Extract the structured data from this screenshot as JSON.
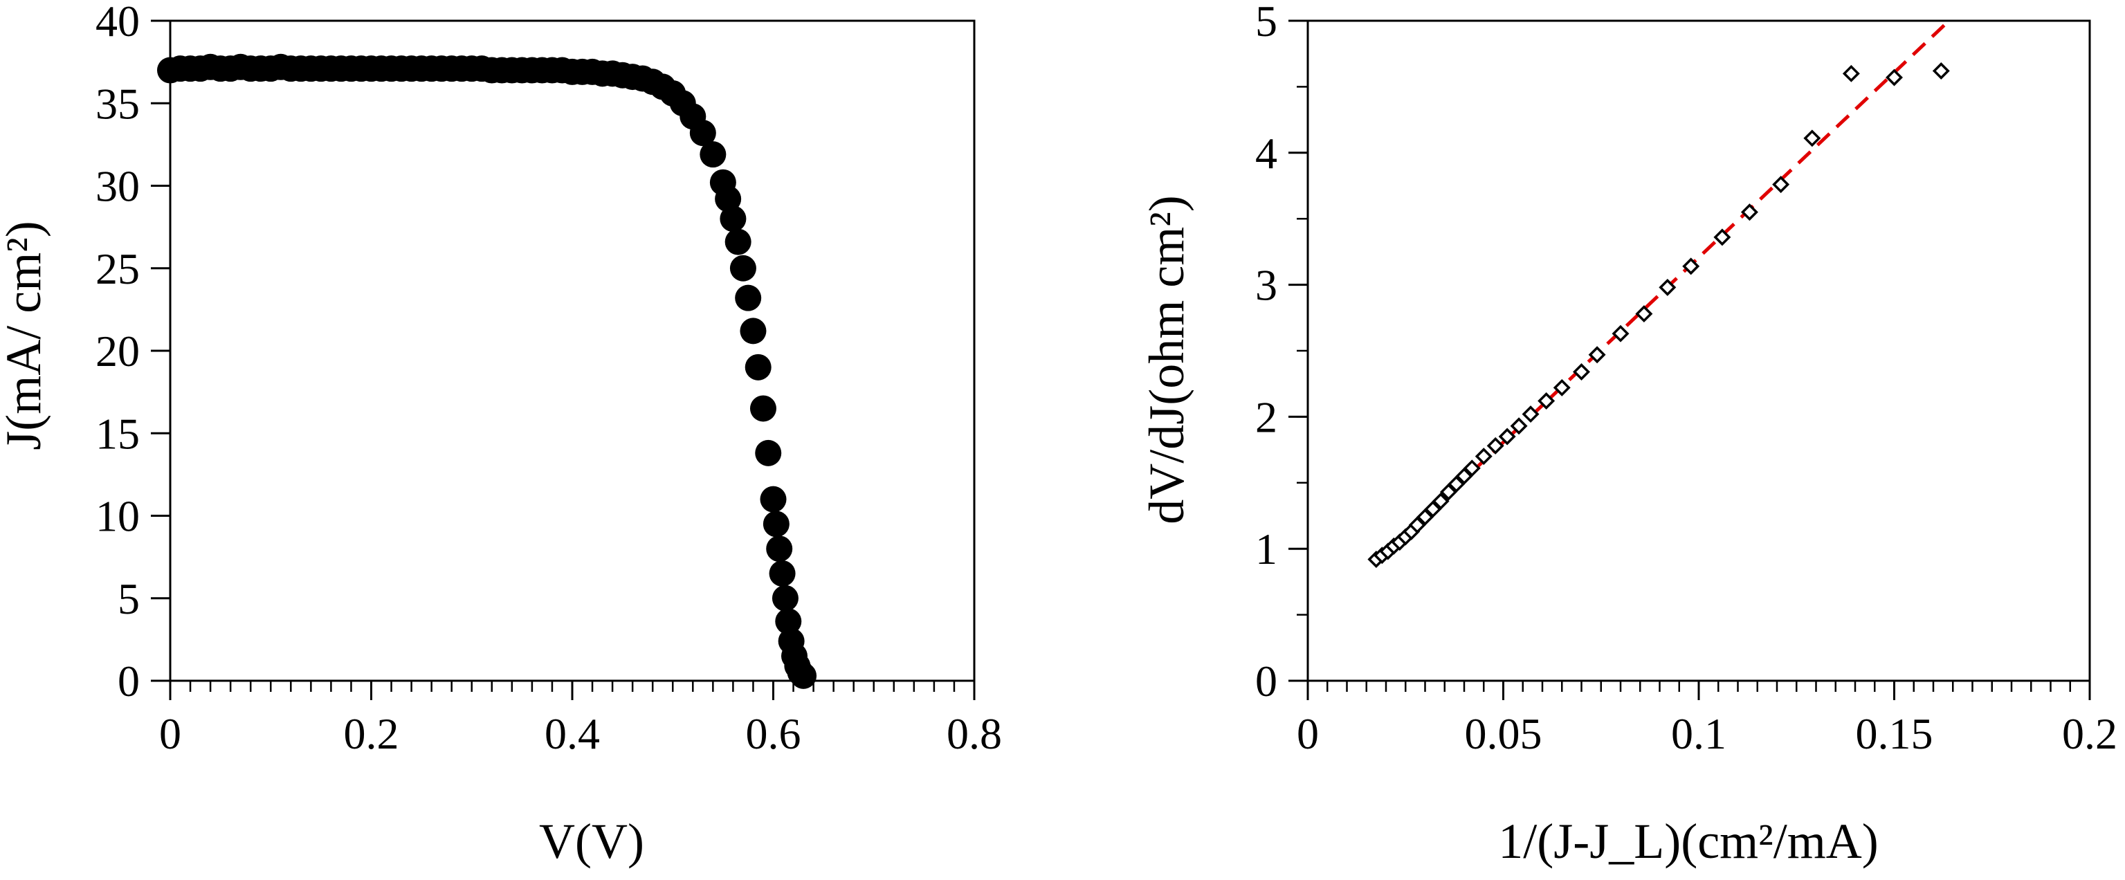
{
  "chart_data": [
    {
      "type": "scatter",
      "title": "",
      "xlabel": "V(V)",
      "ylabel": "J(mA/ cm²)",
      "xlim": [
        0,
        0.8
      ],
      "ylim": [
        0,
        40
      ],
      "xticks": [
        "0",
        "0.2",
        "0.4",
        "0.6",
        "0.8"
      ],
      "yticks": [
        "0",
        "5",
        "10",
        "15",
        "20",
        "25",
        "30",
        "35",
        "40"
      ],
      "grid": false,
      "marker": "filled-circle",
      "marker_color": "#000000",
      "series": [
        {
          "x": [
            0.0,
            0.01,
            0.02,
            0.03,
            0.04,
            0.05,
            0.06,
            0.07,
            0.08,
            0.09,
            0.1,
            0.11,
            0.12,
            0.13,
            0.14,
            0.15,
            0.16,
            0.17,
            0.18,
            0.19,
            0.2,
            0.21,
            0.22,
            0.23,
            0.24,
            0.25,
            0.26,
            0.27,
            0.28,
            0.29,
            0.3,
            0.31,
            0.32,
            0.33,
            0.34,
            0.35,
            0.36,
            0.37,
            0.38,
            0.39,
            0.4,
            0.41,
            0.42,
            0.43,
            0.44,
            0.45,
            0.46,
            0.47,
            0.48,
            0.49,
            0.5,
            0.51,
            0.52,
            0.53,
            0.54,
            0.55,
            0.555,
            0.56,
            0.565,
            0.57,
            0.575,
            0.58,
            0.585,
            0.59,
            0.595,
            0.6,
            0.603,
            0.606,
            0.609,
            0.612,
            0.615,
            0.618,
            0.621,
            0.624,
            0.627,
            0.63
          ],
          "y": [
            37.0,
            37.1,
            37.1,
            37.1,
            37.2,
            37.1,
            37.1,
            37.2,
            37.1,
            37.1,
            37.1,
            37.2,
            37.1,
            37.1,
            37.1,
            37.1,
            37.1,
            37.1,
            37.1,
            37.1,
            37.1,
            37.1,
            37.1,
            37.1,
            37.1,
            37.1,
            37.1,
            37.1,
            37.1,
            37.1,
            37.1,
            37.1,
            37.0,
            37.0,
            37.0,
            37.0,
            37.0,
            37.0,
            37.0,
            37.0,
            36.9,
            36.9,
            36.9,
            36.8,
            36.8,
            36.7,
            36.6,
            36.5,
            36.3,
            36.0,
            35.6,
            35.0,
            34.2,
            33.2,
            31.9,
            30.2,
            29.2,
            28.0,
            26.6,
            25.0,
            23.2,
            21.2,
            19.0,
            16.5,
            13.8,
            11.0,
            9.5,
            8.0,
            6.5,
            5.0,
            3.6,
            2.4,
            1.5,
            0.9,
            0.5,
            0.3
          ]
        }
      ]
    },
    {
      "type": "scatter",
      "title": "",
      "xlabel": "1/(J-J_L)(cm²/mA)",
      "ylabel": "dV/dJ(ohm cm²)",
      "xlim": [
        0,
        0.2
      ],
      "ylim": [
        0,
        5
      ],
      "xticks": [
        "0",
        "0.05",
        "0.1",
        "0.15",
        "0.2"
      ],
      "yticks": [
        "0",
        "1",
        "2",
        "3",
        "4",
        "5"
      ],
      "grid": false,
      "marker": "open-diamond",
      "marker_color": "#000000",
      "series": [
        {
          "x": [
            0.0175,
            0.019,
            0.0205,
            0.022,
            0.0235,
            0.025,
            0.0265,
            0.028,
            0.03,
            0.032,
            0.034,
            0.036,
            0.038,
            0.04,
            0.042,
            0.045,
            0.048,
            0.051,
            0.054,
            0.057,
            0.061,
            0.065,
            0.07,
            0.074,
            0.08,
            0.086,
            0.092,
            0.098,
            0.106,
            0.113,
            0.121,
            0.129,
            0.139,
            0.15,
            0.162
          ],
          "y": [
            0.92,
            0.95,
            0.98,
            1.02,
            1.05,
            1.09,
            1.13,
            1.18,
            1.24,
            1.3,
            1.36,
            1.43,
            1.49,
            1.55,
            1.61,
            1.7,
            1.78,
            1.85,
            1.93,
            2.02,
            2.12,
            2.22,
            2.34,
            2.47,
            2.63,
            2.78,
            2.98,
            3.14,
            3.36,
            3.55,
            3.76,
            4.11,
            4.6,
            4.57,
            4.62
          ]
        }
      ],
      "fit_line": {
        "color": "#e00000",
        "style": "dashed",
        "x": [
          0.018,
          0.164
        ],
        "y": [
          0.91,
          5.0
        ]
      }
    }
  ]
}
